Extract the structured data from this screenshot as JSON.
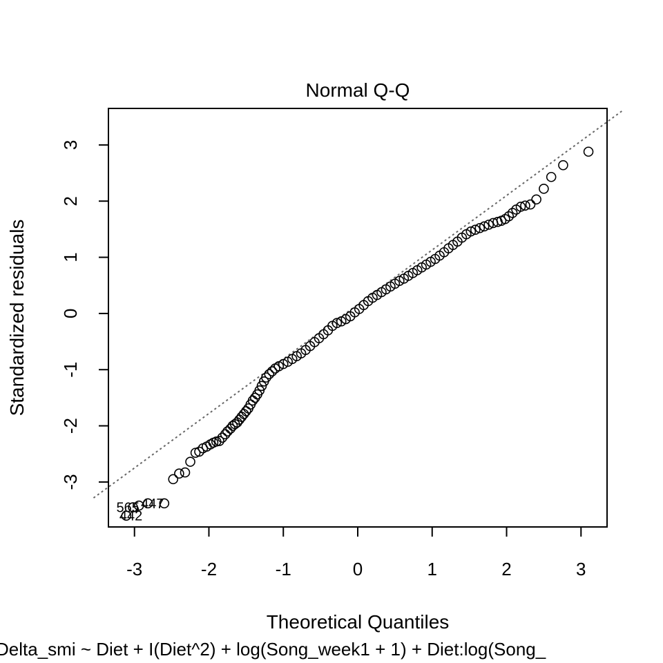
{
  "chart_data": {
    "type": "scatter",
    "title": "Normal Q-Q",
    "xlabel": "Theoretical Quantiles",
    "ylabel": "Standardized residuals",
    "subtitle": "Delta_smi ~ Diet + I(Diet^2) + log(Song_week1 + 1) + Diet:log(Song_",
    "xlim": [
      -3.35,
      3.35
    ],
    "ylim": [
      -3.8,
      3.65
    ],
    "xticks": [
      -3,
      -2,
      -1,
      0,
      1,
      2,
      3
    ],
    "yticks": [
      -3,
      -2,
      -1,
      0,
      1,
      2,
      3
    ],
    "grid": false,
    "reference_line": {
      "intercept": 0.16,
      "slope": 0.97,
      "style": "dotted",
      "color": "#666666"
    },
    "series": [
      {
        "marker": "open-circle",
        "points": [
          [
            -3.11,
            -3.6
          ],
          [
            -3.02,
            -3.45
          ],
          [
            -2.94,
            -3.42
          ],
          [
            -2.82,
            -3.38
          ],
          [
            -2.6,
            -3.38
          ],
          [
            -2.48,
            -2.95
          ],
          [
            -2.4,
            -2.85
          ],
          [
            -2.32,
            -2.83
          ],
          [
            -2.25,
            -2.64
          ],
          [
            -2.18,
            -2.48
          ],
          [
            -2.13,
            -2.46
          ],
          [
            -2.08,
            -2.4
          ],
          [
            -2.03,
            -2.37
          ],
          [
            -1.98,
            -2.33
          ],
          [
            -1.94,
            -2.3
          ],
          [
            -1.9,
            -2.28
          ],
          [
            -1.86,
            -2.27
          ],
          [
            -1.82,
            -2.21
          ],
          [
            -1.78,
            -2.15
          ],
          [
            -1.75,
            -2.1
          ],
          [
            -1.71,
            -2.05
          ],
          [
            -1.68,
            -2.0
          ],
          [
            -1.65,
            -1.97
          ],
          [
            -1.62,
            -1.94
          ],
          [
            -1.59,
            -1.89
          ],
          [
            -1.56,
            -1.84
          ],
          [
            -1.53,
            -1.79
          ],
          [
            -1.5,
            -1.74
          ],
          [
            -1.47,
            -1.69
          ],
          [
            -1.44,
            -1.62
          ],
          [
            -1.41,
            -1.55
          ],
          [
            -1.38,
            -1.5
          ],
          [
            -1.35,
            -1.44
          ],
          [
            -1.32,
            -1.37
          ],
          [
            -1.29,
            -1.29
          ],
          [
            -1.26,
            -1.21
          ],
          [
            -1.23,
            -1.14
          ],
          [
            -1.19,
            -1.08
          ],
          [
            -1.15,
            -1.03
          ],
          [
            -1.11,
            -0.98
          ],
          [
            -1.06,
            -0.94
          ],
          [
            -1.0,
            -0.9
          ],
          [
            -0.94,
            -0.86
          ],
          [
            -0.88,
            -0.81
          ],
          [
            -0.82,
            -0.76
          ],
          [
            -0.76,
            -0.71
          ],
          [
            -0.7,
            -0.65
          ],
          [
            -0.64,
            -0.58
          ],
          [
            -0.58,
            -0.51
          ],
          [
            -0.52,
            -0.44
          ],
          [
            -0.46,
            -0.37
          ],
          [
            -0.4,
            -0.3
          ],
          [
            -0.34,
            -0.22
          ],
          [
            -0.28,
            -0.17
          ],
          [
            -0.22,
            -0.14
          ],
          [
            -0.16,
            -0.1
          ],
          [
            -0.1,
            -0.05
          ],
          [
            -0.04,
            0.02
          ],
          [
            0.02,
            0.08
          ],
          [
            0.08,
            0.15
          ],
          [
            0.14,
            0.22
          ],
          [
            0.2,
            0.28
          ],
          [
            0.26,
            0.33
          ],
          [
            0.32,
            0.38
          ],
          [
            0.38,
            0.43
          ],
          [
            0.44,
            0.48
          ],
          [
            0.5,
            0.53
          ],
          [
            0.56,
            0.58
          ],
          [
            0.62,
            0.62
          ],
          [
            0.68,
            0.67
          ],
          [
            0.74,
            0.72
          ],
          [
            0.8,
            0.77
          ],
          [
            0.86,
            0.82
          ],
          [
            0.92,
            0.87
          ],
          [
            0.98,
            0.92
          ],
          [
            1.04,
            0.97
          ],
          [
            1.1,
            1.03
          ],
          [
            1.16,
            1.09
          ],
          [
            1.22,
            1.16
          ],
          [
            1.28,
            1.22
          ],
          [
            1.34,
            1.28
          ],
          [
            1.4,
            1.35
          ],
          [
            1.46,
            1.41
          ],
          [
            1.52,
            1.46
          ],
          [
            1.58,
            1.49
          ],
          [
            1.64,
            1.52
          ],
          [
            1.7,
            1.55
          ],
          [
            1.76,
            1.58
          ],
          [
            1.82,
            1.61
          ],
          [
            1.88,
            1.63
          ],
          [
            1.93,
            1.65
          ],
          [
            1.98,
            1.68
          ],
          [
            2.03,
            1.73
          ],
          [
            2.08,
            1.79
          ],
          [
            2.13,
            1.85
          ],
          [
            2.19,
            1.9
          ],
          [
            2.25,
            1.92
          ],
          [
            2.32,
            1.94
          ],
          [
            2.4,
            2.03
          ],
          [
            2.5,
            2.22
          ],
          [
            2.6,
            2.43
          ],
          [
            2.76,
            2.64
          ],
          [
            3.1,
            2.88
          ]
        ]
      }
    ],
    "labeled_points": [
      {
        "label": "447",
        "x": -2.82,
        "y": -3.38,
        "anchor": "left"
      },
      {
        "label": "565",
        "x": -3.02,
        "y": -3.45,
        "anchor": "right"
      },
      {
        "label": "442",
        "x": -3.11,
        "y": -3.6,
        "anchor": "left"
      }
    ]
  }
}
